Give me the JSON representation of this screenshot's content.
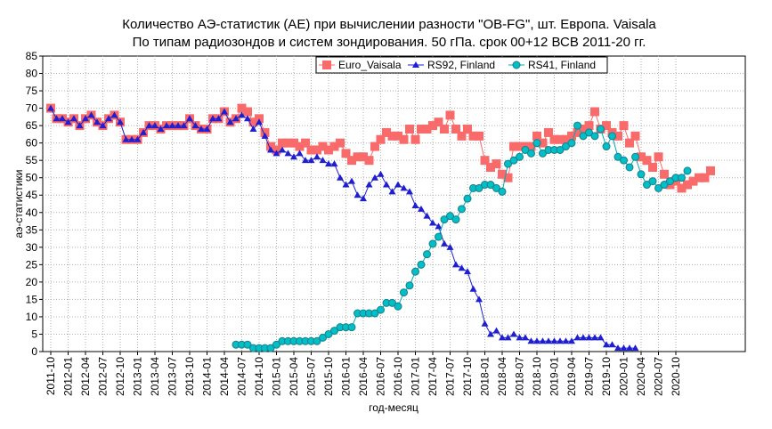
{
  "chart_data": {
    "type": "line",
    "title": "Количество АЭ-статистик (АЕ) при вычислении разности \"OB-FG\", шт. Европа. Vaisala",
    "subtitle": "По типам радиозондов и систем зондирования. 50 гПа. срок 00+12 ВСВ 2011-20 гг.",
    "xlabel": "год-месяц",
    "ylabel": "аэ-статистики",
    "ylim": [
      0,
      85
    ],
    "yticks": [
      0,
      5,
      10,
      15,
      20,
      25,
      30,
      35,
      40,
      45,
      50,
      55,
      60,
      65,
      70,
      75,
      80,
      85
    ],
    "grid": true,
    "legend_position": "top-right",
    "x_start": "2011-10",
    "x_tick_labels": [
      "2011-10",
      "2012-01",
      "2012-04",
      "2012-07",
      "2012-10",
      "2013-01",
      "2013-04",
      "2013-07",
      "2013-10",
      "2014-01",
      "2014-04",
      "2014-07",
      "2014-10",
      "2015-01",
      "2015-04",
      "2015-07",
      "2015-10",
      "2016-01",
      "2016-04",
      "2016-07",
      "2016-10",
      "2017-01",
      "2017-04",
      "2017-07",
      "2017-10",
      "2018-01",
      "2018-04",
      "2018-07",
      "2018-10",
      "2019-01",
      "2019-04",
      "2019-07",
      "2019-10",
      "2020-01",
      "2020-04",
      "2020-07",
      "2020-10"
    ],
    "series": [
      {
        "name": "Euro_Vaisala",
        "color": "#f96a6a",
        "marker": "square",
        "values": [
          70,
          67,
          67,
          66,
          67,
          65,
          67,
          68,
          66,
          65,
          67,
          68,
          66,
          61,
          61,
          61,
          63,
          65,
          65,
          64,
          65,
          65,
          65,
          65,
          67,
          65,
          64,
          64,
          67,
          67,
          69,
          66,
          67,
          70,
          69,
          66,
          67,
          63,
          59,
          58,
          60,
          60,
          60,
          59,
          60,
          58,
          58,
          59,
          58,
          59,
          60,
          57,
          55,
          56,
          56,
          55,
          59,
          61,
          63,
          62,
          62,
          61,
          64,
          61,
          64,
          64,
          65,
          66,
          64,
          68,
          64,
          62,
          64,
          62,
          62,
          55,
          53,
          54,
          51,
          50,
          59,
          59,
          59,
          59,
          62,
          60,
          63,
          61,
          61,
          61,
          62,
          63,
          64,
          65,
          69,
          64,
          65,
          63,
          62,
          65,
          60,
          62,
          56,
          55,
          53,
          56,
          51,
          48,
          49,
          47,
          48,
          49,
          50,
          50,
          52
        ]
      },
      {
        "name": "RS92, Finland",
        "color": "#1f1fd0",
        "marker": "triangle",
        "values": [
          70,
          67,
          67,
          66,
          67,
          65,
          67,
          68,
          66,
          65,
          67,
          68,
          66,
          61,
          61,
          61,
          63,
          65,
          65,
          64,
          65,
          65,
          65,
          65,
          67,
          65,
          64,
          64,
          67,
          67,
          69,
          66,
          67,
          68,
          67,
          64,
          66,
          62,
          58,
          57,
          58,
          57,
          56,
          57,
          55,
          55,
          56,
          55,
          54,
          54,
          50,
          48,
          49,
          45,
          44,
          48,
          50,
          51,
          48,
          46,
          48,
          47,
          46,
          42,
          41,
          39,
          37,
          36,
          31,
          30,
          25,
          24,
          23,
          18,
          15,
          8,
          5,
          6,
          4,
          4,
          5,
          4,
          4,
          3,
          3,
          3,
          3,
          3,
          3,
          3,
          3,
          4,
          4,
          4,
          4,
          4,
          2,
          2,
          1,
          1,
          1,
          1
        ]
      },
      {
        "name": "RS41, Finland",
        "color": "#00bfc8",
        "marker": "circle",
        "series_start": "2014-06",
        "values": [
          2,
          2,
          2,
          1,
          1,
          1,
          1,
          2,
          3,
          3,
          3,
          3,
          3,
          3,
          3,
          4,
          5,
          6,
          7,
          7,
          7,
          11,
          11,
          11,
          11,
          12,
          14,
          14,
          13,
          17,
          19,
          23,
          25,
          28,
          31,
          33,
          38,
          39,
          38,
          41,
          44,
          47,
          47,
          48,
          48,
          47,
          46,
          54,
          55,
          56,
          58,
          57,
          60,
          57,
          58,
          58,
          58,
          59,
          60,
          65,
          62,
          63,
          62,
          64,
          59,
          62,
          56,
          55,
          53,
          56,
          51,
          48,
          49,
          47,
          48,
          49,
          50,
          50,
          52
        ]
      }
    ]
  }
}
